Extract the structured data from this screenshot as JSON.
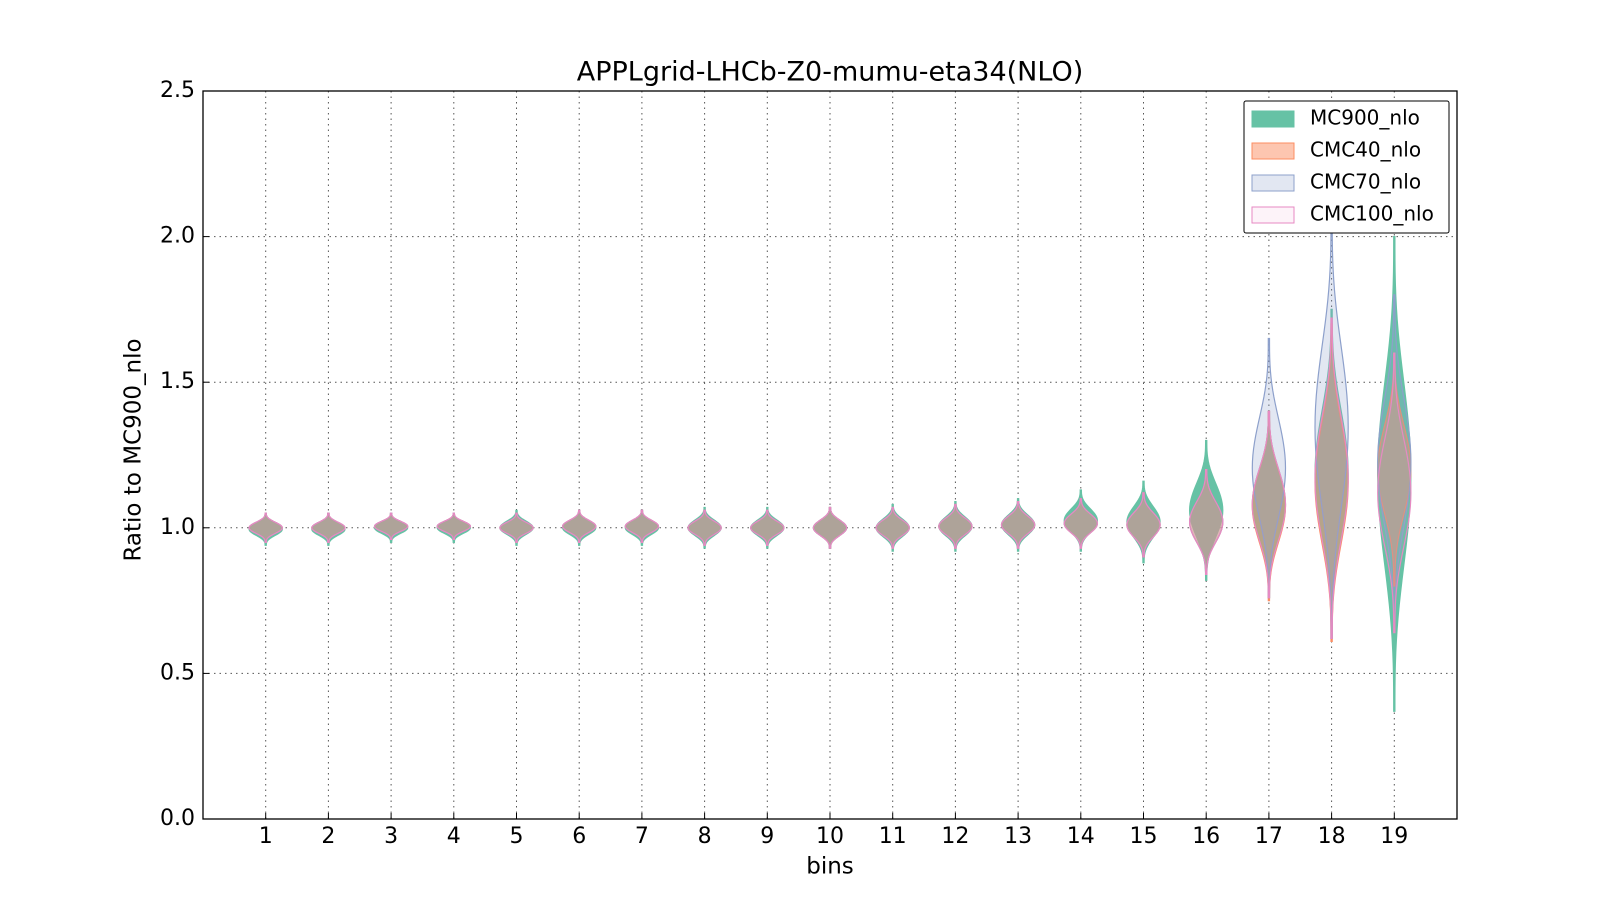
{
  "chart_data": {
    "type": "violin",
    "title": "APPLgrid-LHCb-Z0-mumu-eta34(NLO)",
    "xlabel": "bins",
    "ylabel": "Ratio to MC900_nlo",
    "x": [
      1,
      2,
      3,
      4,
      5,
      6,
      7,
      8,
      9,
      10,
      11,
      12,
      13,
      14,
      15,
      16,
      17,
      18,
      19
    ],
    "xlim": [
      0,
      20
    ],
    "xticks": [
      1,
      2,
      3,
      4,
      5,
      6,
      7,
      8,
      9,
      10,
      11,
      12,
      13,
      14,
      15,
      16,
      17,
      18,
      19
    ],
    "ylim": [
      0,
      2.5
    ],
    "yticks": [
      {
        "value": 0,
        "label": "0.0"
      },
      0.5,
      {
        "value": 1,
        "label": "1.0"
      },
      1.5,
      {
        "value": 2,
        "label": "2.0"
      },
      2.5
    ],
    "grid": true,
    "legend": "upper right",
    "series": [
      {
        "name": "MC900_nlo",
        "color": "#66c2a5",
        "opacity": 1,
        "min": [
          0.94,
          0.94,
          0.95,
          0.95,
          0.94,
          0.94,
          0.94,
          0.93,
          0.93,
          0.93,
          0.92,
          0.92,
          0.92,
          0.92,
          0.88,
          0.82,
          0.76,
          0.62,
          0.37
        ],
        "max": [
          1.05,
          1.05,
          1.05,
          1.05,
          1.06,
          1.06,
          1.06,
          1.07,
          1.07,
          1.07,
          1.08,
          1.09,
          1.1,
          1.13,
          1.16,
          1.3,
          1.4,
          1.75,
          2.0
        ]
      },
      {
        "name": "CMC40_nlo",
        "color": "#fc8d62",
        "opacity": 0.5,
        "min": [
          0.95,
          0.95,
          0.96,
          0.96,
          0.95,
          0.95,
          0.95,
          0.94,
          0.94,
          0.93,
          0.93,
          0.93,
          0.93,
          0.93,
          0.9,
          0.84,
          0.75,
          0.61,
          0.8
        ],
        "max": [
          1.05,
          1.05,
          1.05,
          1.05,
          1.05,
          1.06,
          1.06,
          1.06,
          1.06,
          1.07,
          1.07,
          1.08,
          1.09,
          1.1,
          1.12,
          1.2,
          1.4,
          1.7,
          1.6
        ]
      },
      {
        "name": "CMC70_nlo",
        "color": "#8da0cb",
        "opacity": 0.25,
        "min": [
          0.95,
          0.95,
          0.96,
          0.96,
          0.95,
          0.95,
          0.95,
          0.94,
          0.94,
          0.93,
          0.93,
          0.93,
          0.93,
          0.93,
          0.9,
          0.84,
          0.76,
          0.62,
          0.65
        ],
        "max": [
          1.05,
          1.05,
          1.05,
          1.05,
          1.05,
          1.06,
          1.06,
          1.06,
          1.06,
          1.07,
          1.07,
          1.08,
          1.09,
          1.1,
          1.12,
          1.2,
          1.65,
          2.07,
          1.8
        ]
      },
      {
        "name": "CMC100_nlo",
        "color": "#e78ac3",
        "opacity": 0.1,
        "min": [
          0.95,
          0.95,
          0.96,
          0.96,
          0.95,
          0.95,
          0.95,
          0.94,
          0.94,
          0.93,
          0.93,
          0.93,
          0.93,
          0.93,
          0.9,
          0.84,
          0.76,
          0.62,
          0.64
        ],
        "max": [
          1.05,
          1.05,
          1.05,
          1.05,
          1.05,
          1.06,
          1.06,
          1.06,
          1.06,
          1.07,
          1.07,
          1.08,
          1.09,
          1.1,
          1.12,
          1.2,
          1.4,
          1.72,
          1.6
        ]
      }
    ]
  }
}
